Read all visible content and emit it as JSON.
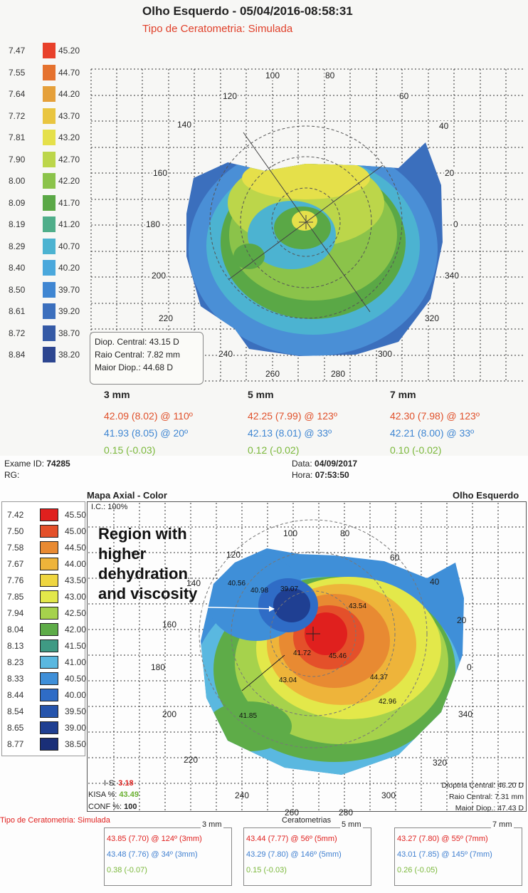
{
  "top": {
    "title": "Olho Esquerdo - 05/04/2016-08:58:31",
    "subtitle": "Tipo de Ceratometria: Simulada",
    "legend": [
      {
        "radius": "7.47",
        "diopter": "45.20",
        "color": "#e8402a"
      },
      {
        "radius": "7.55",
        "diopter": "44.70",
        "color": "#e5722e"
      },
      {
        "radius": "7.64",
        "diopter": "44.20",
        "color": "#e5a03a"
      },
      {
        "radius": "7.72",
        "diopter": "43.70",
        "color": "#e9c53f"
      },
      {
        "radius": "7.81",
        "diopter": "43.20",
        "color": "#e5e04a"
      },
      {
        "radius": "7.90",
        "diopter": "42.70",
        "color": "#bcd64a"
      },
      {
        "radius": "8.00",
        "diopter": "42.20",
        "color": "#8bc34a"
      },
      {
        "radius": "8.09",
        "diopter": "41.70",
        "color": "#5aa846"
      },
      {
        "radius": "8.19",
        "diopter": "41.20",
        "color": "#4fae8a"
      },
      {
        "radius": "8.29",
        "diopter": "40.70",
        "color": "#4cb3d1"
      },
      {
        "radius": "8.40",
        "diopter": "40.20",
        "color": "#4aa8dc"
      },
      {
        "radius": "8.50",
        "diopter": "39.70",
        "color": "#3f86d2"
      },
      {
        "radius": "8.61",
        "diopter": "39.20",
        "color": "#3b6fbd"
      },
      {
        "radius": "8.72",
        "diopter": "38.70",
        "color": "#355aa6"
      },
      {
        "radius": "8.84",
        "diopter": "38.20",
        "color": "#2d4690"
      }
    ],
    "angles": [
      "100",
      "80",
      "120",
      "60",
      "140",
      "40",
      "160",
      "20",
      "180",
      "0",
      "200",
      "340",
      "220",
      "320",
      "240",
      "300",
      "260",
      "280"
    ],
    "info": {
      "central_diop": "Diop. Central: 43.15 D",
      "central_radius": "Raio Central: 7.82 mm",
      "max_diop": "Maior Diop.: 44.68 D"
    },
    "zones": [
      {
        "label": "3 mm",
        "steep": "42.09 (8.02) @ 110º",
        "flat": "41.93 (8.05) @ 20º",
        "diff": "0.15 (-0.03)"
      },
      {
        "label": "5 mm",
        "steep": "42.25 (7.99) @ 123º",
        "flat": "42.13 (8.01) @ 33º",
        "diff": "0.12 (-0.02)"
      },
      {
        "label": "7 mm",
        "steep": "42.30 (7.98) @ 123º",
        "flat": "42.21 (8.00) @ 33º",
        "diff": "0.10 (-0.02)"
      }
    ]
  },
  "bottom": {
    "exam_id_label": "Exame ID:",
    "exam_id": "74285",
    "rg_label": "RG:",
    "date_label": "Data:",
    "date": "04/09/2017",
    "time_label": "Hora:",
    "time": "07:53:50",
    "map_title": "Mapa Axial - Color",
    "eye": "Olho Esquerdo",
    "ic": "I.C.: 100%",
    "legend": [
      {
        "radius": "7.42",
        "diopter": "45.50",
        "color": "#e0201e"
      },
      {
        "radius": "7.50",
        "diopter": "45.00",
        "color": "#e4502a"
      },
      {
        "radius": "7.58",
        "diopter": "44.50",
        "color": "#e88a32"
      },
      {
        "radius": "7.67",
        "diopter": "44.00",
        "color": "#eeb43a"
      },
      {
        "radius": "7.76",
        "diopter": "43.50",
        "color": "#efd640"
      },
      {
        "radius": "7.85",
        "diopter": "43.00",
        "color": "#e3e84a"
      },
      {
        "radius": "7.94",
        "diopter": "42.50",
        "color": "#a6d24c"
      },
      {
        "radius": "8.04",
        "diopter": "42.00",
        "color": "#5eac48"
      },
      {
        "radius": "8.13",
        "diopter": "41.50",
        "color": "#3f9a84"
      },
      {
        "radius": "8.23",
        "diopter": "41.00",
        "color": "#5ab8e0"
      },
      {
        "radius": "8.33",
        "diopter": "40.50",
        "color": "#3f8fd8"
      },
      {
        "radius": "8.44",
        "diopter": "40.00",
        "color": "#2f6cc6"
      },
      {
        "radius": "8.54",
        "diopter": "39.50",
        "color": "#2554ac"
      },
      {
        "radius": "8.65",
        "diopter": "39.00",
        "color": "#1f3f92"
      },
      {
        "radius": "8.77",
        "diopter": "38.50",
        "color": "#1a2f78"
      }
    ],
    "annotation": "Region with higher dehydration and viscosity",
    "point_values": [
      "40.56",
      "40.98",
      "39.07",
      "43.54",
      "41.72",
      "45.46",
      "44.37",
      "43.04",
      "42.96",
      "41.85"
    ],
    "angles": [
      "100",
      "80",
      "120",
      "60",
      "140",
      "40",
      "160",
      "20",
      "180",
      "0",
      "200",
      "340",
      "220",
      "320",
      "240",
      "300",
      "260",
      "280"
    ],
    "is_label": "I-S:",
    "is_value": "3.18",
    "kisa_label": "KISA %:",
    "kisa_value": "43.49",
    "conf_label": "CONF %:",
    "conf_value": "100",
    "info": {
      "central_diop": "Dioptria Central: 46.20 D",
      "central_radius": "Raio Central: 7.31 mm",
      "max_diop": "Maior Diop.: 47.43 D"
    },
    "kerat_type_prefix": "Tipo de",
    "kerat_type_rest": "Ceratometria: Simulada",
    "kerat_title": "Ceratometrias",
    "zones": [
      {
        "label": "3 mm",
        "steep": "43.85 (7.70) @ 124º (3mm)",
        "flat": "43.48 (7.76) @ 34º (3mm)",
        "diff": "0.38 (-0.07)"
      },
      {
        "label": "5 mm",
        "steep": "43.44 (7.77) @ 56º (5mm)",
        "flat": "43.29 (7.80) @ 146º (5mm)",
        "diff": "0.15 (-0.03)"
      },
      {
        "label": "7 mm",
        "steep": "43.27 (7.80) @ 55º (7mm)",
        "flat": "43.01 (7.85) @ 145º (7mm)",
        "diff": "0.26 (-0.05)"
      }
    ]
  }
}
